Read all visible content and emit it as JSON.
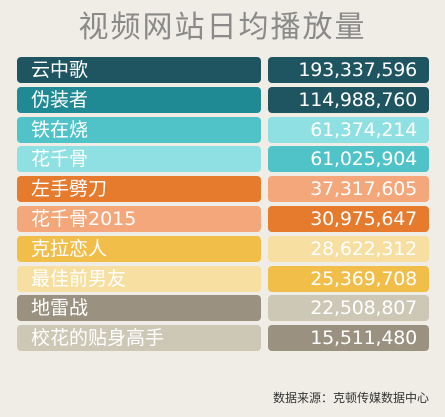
{
  "title": "视频网站日均播放量",
  "source": "数据来源：克顿传媒数据中心",
  "chart_data": {
    "type": "table",
    "title": "视频网站日均播放量",
    "categories": [
      "云中歌",
      "伪装者",
      "铁在烧",
      "花千骨",
      "左手劈刀",
      "花千骨2015",
      "克拉恋人",
      "最佳前男友",
      "地雷战",
      "校花的贴身高手"
    ],
    "values": [
      193337596,
      114988760,
      61374214,
      61025904,
      37317605,
      30975647,
      28622312,
      25369708,
      22508807,
      15511480
    ],
    "display_values": [
      "193,337,596",
      "114,988,760",
      "61,374,214",
      "61,025,904",
      "37,317,605",
      "30,975,647",
      "28,622,312",
      "25,369,708",
      "22,508,807",
      "15,511,480"
    ],
    "row_colors": [
      {
        "name_bg": "#1e5561",
        "value_bg": "#1e5561",
        "name_fg": "#ffffff",
        "value_fg": "#ffffff"
      },
      {
        "name_bg": "#1f8a94",
        "value_bg": "#1e5561",
        "name_fg": "#ffffff",
        "value_fg": "#ffffff"
      },
      {
        "name_bg": "#4fc3c8",
        "value_bg": "#8fe0e2",
        "name_fg": "#ffffff",
        "value_fg": "#ffffff"
      },
      {
        "name_bg": "#8fe0e2",
        "value_bg": "#4fc3c8",
        "name_fg": "#ffffff",
        "value_fg": "#ffffff"
      },
      {
        "name_bg": "#e67a2d",
        "value_bg": "#f4a77a",
        "name_fg": "#ffffff",
        "value_fg": "#ffffff"
      },
      {
        "name_bg": "#f4a77a",
        "value_bg": "#e67a2d",
        "name_fg": "#ffffff",
        "value_fg": "#ffffff"
      },
      {
        "name_bg": "#f2be4a",
        "value_bg": "#f6dfa0",
        "name_fg": "#ffffff",
        "value_fg": "#ffffff"
      },
      {
        "name_bg": "#f6dfa0",
        "value_bg": "#f2be4a",
        "name_fg": "#ffffff",
        "value_fg": "#ffffff"
      },
      {
        "name_bg": "#9a9180",
        "value_bg": "#cdc7b6",
        "name_fg": "#ffffff",
        "value_fg": "#ffffff"
      },
      {
        "name_bg": "#cdc7b6",
        "value_bg": "#9a9180",
        "name_fg": "#ffffff",
        "value_fg": "#ffffff"
      }
    ]
  }
}
